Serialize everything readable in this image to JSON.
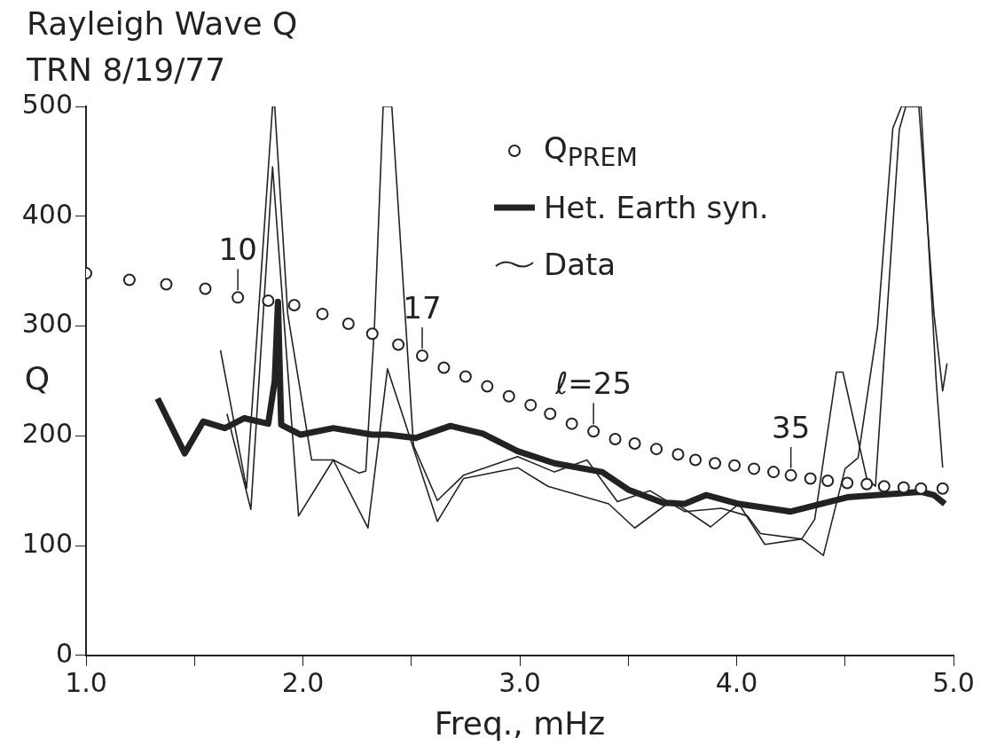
{
  "chart_data": {
    "type": "line",
    "title": "Rayleigh Wave Q",
    "subtitle": "TRN 8/19/77",
    "xlabel": "Freq., mHz",
    "ylabel": "Q",
    "xlim": [
      1.0,
      5.0
    ],
    "xticks": [
      {
        "value": 1.0,
        "label": "1.0"
      },
      {
        "value": 1.5,
        "label": null
      },
      {
        "value": 2.0,
        "label": "2.0"
      },
      {
        "value": 2.5,
        "label": null
      },
      {
        "value": 3.0,
        "label": "3.0"
      },
      {
        "value": 3.5,
        "label": null
      },
      {
        "value": 4.0,
        "label": "4.0"
      },
      {
        "value": 4.5,
        "label": null
      },
      {
        "value": 5.0,
        "label": "5.0"
      }
    ],
    "ylim": [
      0,
      500
    ],
    "yticks": [
      0,
      100,
      200,
      300,
      400,
      500
    ],
    "grid": false,
    "legend": "top right",
    "line_style": "solid",
    "series": [
      {
        "name": "Q$_{PREM}$",
        "type": "scatter",
        "marker": "circle",
        "color": "#222222",
        "x": [
          1.0,
          1.2,
          1.37,
          1.55,
          1.7,
          1.84,
          1.96,
          2.09,
          2.21,
          2.32,
          2.44,
          2.55,
          2.65,
          2.75,
          2.85,
          2.95,
          3.05,
          3.14,
          3.24,
          3.34,
          3.44,
          3.53,
          3.63,
          3.73,
          3.81,
          3.9,
          3.99,
          4.08,
          4.17,
          4.25,
          4.34,
          4.42,
          4.51,
          4.6,
          4.68,
          4.77,
          4.85,
          4.95
        ],
        "values": [
          348,
          342,
          338,
          334,
          326,
          323,
          319,
          311,
          302,
          293,
          283,
          273,
          262,
          254,
          245,
          236,
          228,
          220,
          211,
          204,
          197,
          193,
          188,
          183,
          178,
          175,
          173,
          170,
          167,
          164,
          161,
          159,
          157,
          156,
          154,
          153,
          152,
          152
        ]
      },
      {
        "name": "Het. Earth syn.",
        "marker": "none",
        "color": "#222222",
        "x": [
          1.33,
          1.455,
          1.54,
          1.64,
          1.73,
          1.84,
          1.87,
          1.885,
          1.9,
          1.99,
          2.14,
          2.32,
          2.39,
          2.52,
          2.68,
          2.83,
          2.99,
          3.16,
          3.38,
          3.5,
          3.66,
          3.76,
          3.86,
          4.01,
          4.25,
          4.51,
          4.85,
          4.91,
          4.96
        ],
        "values": [
          234,
          184,
          213,
          207,
          216,
          211,
          250,
          322,
          210,
          201,
          207,
          201,
          201,
          198,
          209,
          202,
          186,
          175,
          167,
          151,
          139,
          138,
          146,
          138,
          131,
          144,
          149,
          146,
          138
        ]
      },
      {
        "name": "Data",
        "marker": "none",
        "color": "#222222",
        "x": [
          1.62,
          1.74,
          1.86,
          1.87,
          1.93,
          2.04,
          2.14,
          2.26,
          2.29,
          2.33,
          2.37,
          2.41,
          2.51,
          2.62,
          2.74,
          2.99,
          3.16,
          3.31,
          3.45,
          3.6,
          3.76,
          3.93,
          4.05,
          4.11,
          4.3,
          4.36,
          4.46,
          4.49,
          4.6,
          4.64,
          4.75,
          4.78,
          4.84,
          4.91,
          4.95,
          4.97
        ],
        "values": [
          278,
          152,
          500,
          500,
          311,
          178,
          178,
          166,
          168,
          300,
          500,
          500,
          191,
          141,
          164,
          181,
          167,
          178,
          140,
          150,
          131,
          134,
          127,
          111,
          106,
          124,
          258,
          258,
          161,
          154,
          479,
          500,
          500,
          311,
          241,
          266
        ]
      },
      {
        "marker": "none",
        "color": "#222222",
        "x": [
          1.65,
          1.76,
          1.86,
          1.98,
          2.14,
          2.3,
          2.39,
          2.62,
          2.74,
          2.99,
          3.13,
          3.41,
          3.53,
          3.7,
          3.88,
          4.01,
          4.13,
          4.3,
          4.4,
          4.5,
          4.56,
          4.65,
          4.72,
          4.76,
          4.85,
          4.92,
          4.95
        ],
        "values": [
          220,
          133,
          445,
          127,
          178,
          116,
          261,
          122,
          161,
          171,
          154,
          138,
          116,
          141,
          117,
          138,
          101,
          106,
          91,
          170,
          180,
          300,
          480,
          500,
          500,
          250,
          171
        ]
      }
    ],
    "annotations": [
      {
        "text": "10",
        "x": 1.7,
        "y": 326
      },
      {
        "text": "17",
        "x": 2.55,
        "y": 273
      },
      {
        "text": "ℓ=25",
        "x": 3.34,
        "y": 204
      },
      {
        "text": "35",
        "x": 4.25,
        "y": 164
      }
    ]
  }
}
